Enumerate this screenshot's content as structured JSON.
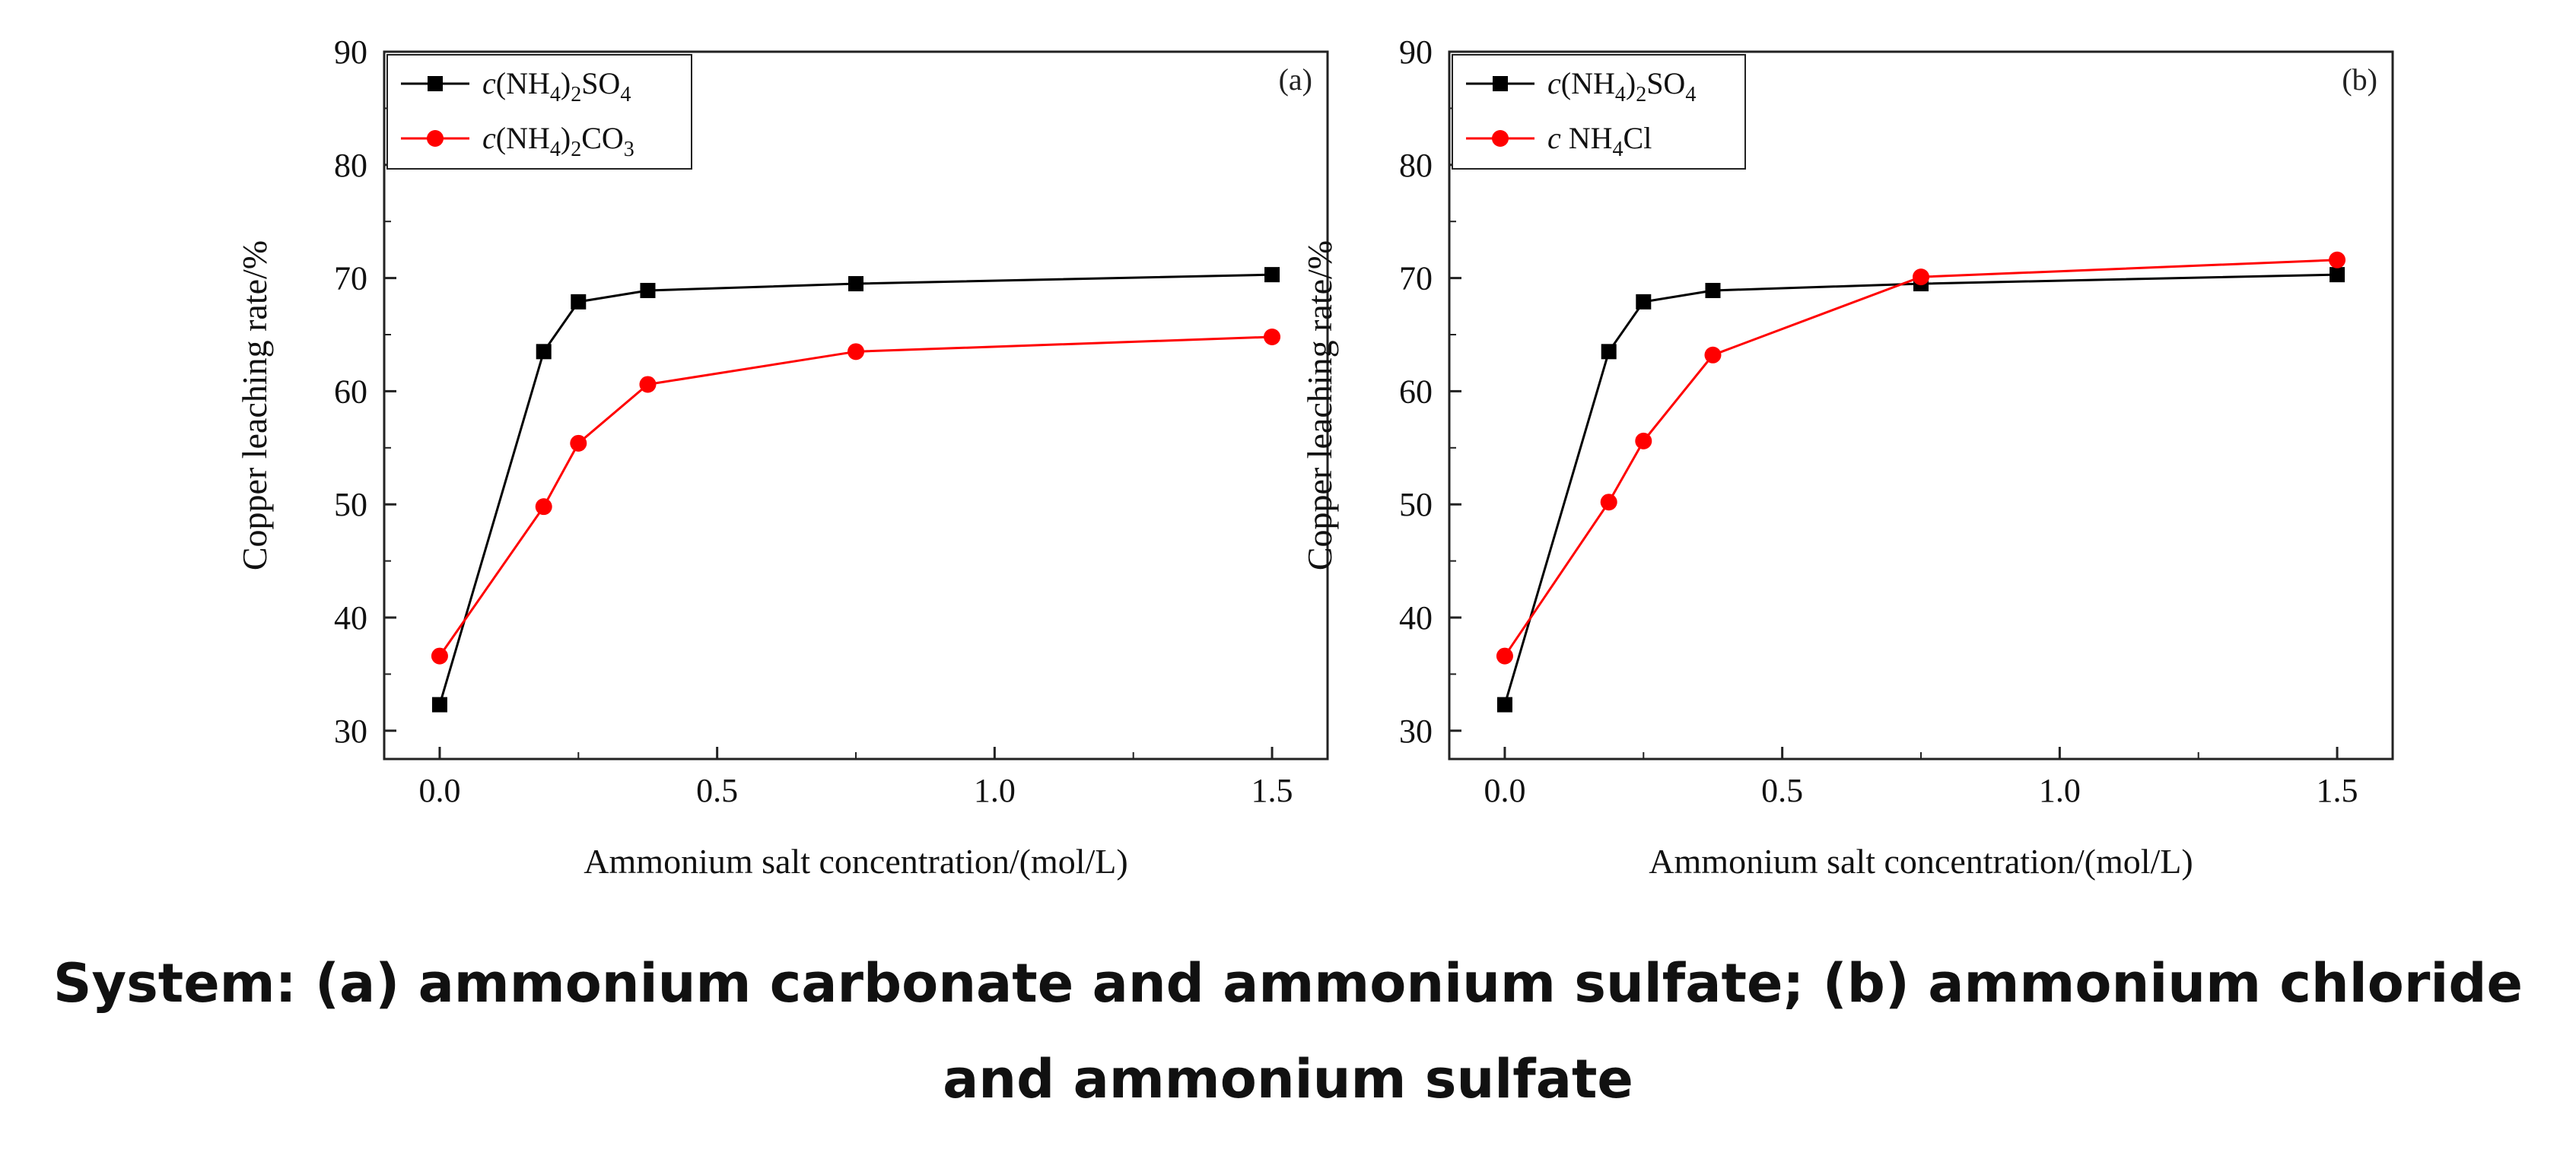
{
  "caption": "System: (a) ammonium carbonate and ammonium sulfate; (b) ammonium chloride and ammonium sulfate",
  "chart_data": [
    {
      "type": "line",
      "panel_label": "(a)",
      "xlabel": "Ammonium salt concentration/(mol/L)",
      "ylabel": "Copper leaching rate/%",
      "xlim": [
        -0.1,
        1.6
      ],
      "ylim": [
        27.5,
        90
      ],
      "xticks": [
        0.0,
        0.5,
        1.0,
        1.5
      ],
      "xtick_labels": [
        "0.0",
        "0.5",
        "1.0",
        "1.5"
      ],
      "yticks": [
        30,
        40,
        50,
        60,
        70,
        80,
        90
      ],
      "ytick_labels": [
        "30",
        "40",
        "50",
        "60",
        "70",
        "80",
        "90"
      ],
      "grid": false,
      "legend_position": "top-left",
      "series": [
        {
          "name": "c(NH4)2SO4",
          "color": "#000000",
          "marker": "square",
          "x": [
            0.0,
            0.1875,
            0.25,
            0.375,
            0.75,
            1.5
          ],
          "y": [
            32.3,
            63.5,
            67.9,
            68.9,
            69.5,
            70.3
          ]
        },
        {
          "name": "c(NH4)2CO3",
          "color": "#ff0000",
          "marker": "circle",
          "x": [
            0.0,
            0.1875,
            0.25,
            0.375,
            0.75,
            1.5
          ],
          "y": [
            36.6,
            49.8,
            55.4,
            60.6,
            63.5,
            64.8
          ]
        }
      ]
    },
    {
      "type": "line",
      "panel_label": "(b)",
      "xlabel": "Ammonium salt concentration/(mol/L)",
      "ylabel": "Copper leaching rate/%",
      "xlim": [
        -0.1,
        1.6
      ],
      "ylim": [
        27.5,
        90
      ],
      "xticks": [
        0.0,
        0.5,
        1.0,
        1.5
      ],
      "xtick_labels": [
        "0.0",
        "0.5",
        "1.0",
        "1.5"
      ],
      "yticks": [
        30,
        40,
        50,
        60,
        70,
        80,
        90
      ],
      "ytick_labels": [
        "30",
        "40",
        "50",
        "60",
        "70",
        "80",
        "90"
      ],
      "grid": false,
      "legend_position": "top-left",
      "series": [
        {
          "name": "c(NH4)2SO4",
          "color": "#000000",
          "marker": "square",
          "x": [
            0.0,
            0.1875,
            0.25,
            0.375,
            0.75,
            1.5
          ],
          "y": [
            32.3,
            63.5,
            67.9,
            68.9,
            69.5,
            70.3
          ]
        },
        {
          "name": "c NH4Cl",
          "color": "#ff0000",
          "marker": "circle",
          "x": [
            0.0,
            0.1875,
            0.25,
            0.375,
            0.75,
            1.5
          ],
          "y": [
            36.6,
            50.2,
            55.6,
            63.2,
            70.1,
            71.6
          ]
        }
      ]
    }
  ]
}
